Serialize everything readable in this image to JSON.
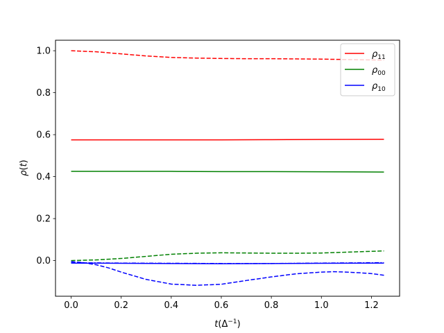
{
  "chart_data": {
    "type": "line",
    "title": "",
    "xlabel": "t(Δ⁻¹)",
    "ylabel": "ρ(t)",
    "xlim": [
      -0.0625,
      1.3125
    ],
    "ylim": [
      -0.17,
      1.05
    ],
    "x_ticks": [
      0.0,
      0.2,
      0.4,
      0.6,
      0.8,
      1.0,
      1.2
    ],
    "x_tick_labels": [
      "0.0",
      "0.2",
      "0.4",
      "0.6",
      "0.8",
      "1.0",
      "1.2"
    ],
    "y_ticks": [
      0.0,
      0.2,
      0.4,
      0.6,
      0.8,
      1.0
    ],
    "y_tick_labels": [
      "0.0",
      "0.2",
      "0.4",
      "0.6",
      "0.8",
      "1.0"
    ],
    "grid": false,
    "legend": {
      "placement": "top-right",
      "entries": [
        {
          "name": "ρ",
          "sub": "11",
          "color": "#ff0000"
        },
        {
          "name": "ρ",
          "sub": "00",
          "color": "#008000"
        },
        {
          "name": "ρ",
          "sub": "10",
          "color": "#0000ff"
        }
      ]
    },
    "series": [
      {
        "name": "ρ11",
        "style": "solid",
        "color": "#ff0000",
        "x": [
          0.0,
          0.2,
          0.4,
          0.6,
          0.8,
          1.0,
          1.25
        ],
        "y": [
          0.575,
          0.575,
          0.575,
          0.575,
          0.576,
          0.577,
          0.578
        ]
      },
      {
        "name": "ρ11",
        "style": "dashed",
        "color": "#ff0000",
        "x": [
          0.0,
          0.1,
          0.2,
          0.3,
          0.4,
          0.5,
          0.6,
          0.7,
          0.8,
          0.9,
          1.0,
          1.1,
          1.25
        ],
        "y": [
          1.0,
          0.995,
          0.985,
          0.975,
          0.968,
          0.965,
          0.963,
          0.962,
          0.962,
          0.961,
          0.96,
          0.958,
          0.955
        ]
      },
      {
        "name": "ρ00",
        "style": "solid",
        "color": "#008000",
        "x": [
          0.0,
          0.2,
          0.4,
          0.6,
          0.8,
          1.0,
          1.25
        ],
        "y": [
          0.425,
          0.425,
          0.425,
          0.424,
          0.424,
          0.423,
          0.422
        ]
      },
      {
        "name": "ρ00",
        "style": "dashed",
        "color": "#008000",
        "x": [
          0.0,
          0.1,
          0.2,
          0.3,
          0.4,
          0.5,
          0.6,
          0.7,
          0.8,
          0.9,
          1.0,
          1.1,
          1.25
        ],
        "y": [
          0.0,
          0.003,
          0.01,
          0.02,
          0.03,
          0.035,
          0.037,
          0.036,
          0.035,
          0.035,
          0.036,
          0.04,
          0.046
        ]
      },
      {
        "name": "ρ10",
        "style": "solid",
        "color": "#0000ff",
        "x": [
          0.0,
          0.2,
          0.4,
          0.6,
          0.8,
          1.0,
          1.25
        ],
        "y": [
          -0.012,
          -0.013,
          -0.014,
          -0.015,
          -0.014,
          -0.013,
          -0.012
        ]
      },
      {
        "name": "ρ10",
        "style": "dashdot",
        "color": "#0000ff",
        "x": [
          0.0,
          0.2,
          0.4,
          0.6,
          0.8,
          1.0,
          1.25
        ],
        "y": [
          -0.01,
          -0.012,
          -0.013,
          -0.014,
          -0.014,
          -0.012,
          -0.01
        ]
      },
      {
        "name": "ρ10",
        "style": "dashed",
        "color": "#0000ff",
        "x": [
          0.0,
          0.05,
          0.1,
          0.15,
          0.2,
          0.3,
          0.4,
          0.5,
          0.6,
          0.7,
          0.8,
          0.9,
          1.0,
          1.05,
          1.1,
          1.15,
          1.2,
          1.25
        ],
        "y": [
          -0.005,
          -0.01,
          -0.02,
          -0.035,
          -0.055,
          -0.09,
          -0.112,
          -0.118,
          -0.113,
          -0.095,
          -0.078,
          -0.063,
          -0.055,
          -0.053,
          -0.055,
          -0.058,
          -0.062,
          -0.07
        ]
      }
    ]
  }
}
